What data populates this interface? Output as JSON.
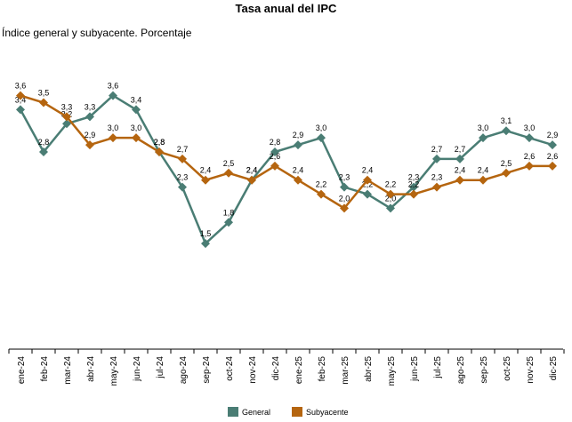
{
  "chart_data": {
    "type": "line",
    "title": "Tasa anual del IPC",
    "subtitle": "Índice general y subyacente. Porcentaje",
    "categories": [
      "ene-24",
      "feb-24",
      "mar-24",
      "abr-24",
      "may-24",
      "jun-24",
      "jul-24",
      "ago-24",
      "sep-24",
      "oct-24",
      "nov-24",
      "dic-24",
      "ene-25",
      "feb-25",
      "mar-25",
      "abr-25",
      "may-25",
      "jun-25",
      "jul-25",
      "ago-25",
      "sep-25",
      "oct-25",
      "nov-25",
      "dic-25"
    ],
    "tick_labels": [
      "ene-24",
      "feb-24",
      "mar-24",
      "abr-24",
      "may-24",
      "jun-24",
      "jul-24",
      "ago-24",
      "sep-24",
      "oct-24",
      "nov-24",
      "dic-24",
      "ene-25",
      "feb-25",
      "mar-25",
      "abr-25",
      "may-25",
      "jun-25",
      "jul-25",
      "ago-25",
      "sep-25",
      "oct-25",
      "nov-25",
      "dic-25"
    ],
    "ylim": [
      0,
      4.2
    ],
    "grid": false,
    "legend_position": "bottom",
    "series": [
      {
        "name": "General",
        "color": "#4a7d74",
        "values": [
          3.4,
          2.8,
          3.2,
          3.3,
          3.6,
          3.4,
          2.8,
          2.3,
          1.5,
          1.8,
          2.4,
          2.8,
          2.9,
          3.0,
          2.3,
          2.2,
          2.0,
          2.3,
          2.7,
          2.7,
          3.0,
          3.1,
          3.0,
          2.9
        ],
        "labels": [
          "3,4",
          "2,8",
          "3,2",
          "3,3",
          "3,6",
          "3,4",
          "2,8",
          "2,3",
          "1,5",
          "1,8",
          "2,4",
          "2,8",
          "2,9",
          "3,0",
          "2,3",
          "2,2",
          "2,0",
          "2,3",
          "2,7",
          "2,7",
          "3,0",
          "3,1",
          "3,0",
          "2,9"
        ]
      },
      {
        "name": "Subyacente",
        "color": "#b5650f",
        "values": [
          3.6,
          3.5,
          3.3,
          2.9,
          3.0,
          3.0,
          2.8,
          2.7,
          2.4,
          2.5,
          2.4,
          2.6,
          2.4,
          2.2,
          2.0,
          2.4,
          2.2,
          2.2,
          2.3,
          2.4,
          2.4,
          2.5,
          2.6,
          2.6
        ],
        "labels": [
          "3,6",
          "3,5",
          "3,3",
          "2,9",
          "3,0",
          "3,0",
          "2,8",
          "2,7",
          "2,4",
          "2,5",
          "2,4",
          "2,6",
          "2,4",
          "2,2",
          "2,0",
          "2,4",
          "2,2",
          "2,2",
          "2,3",
          "2,4",
          "2,4",
          "2,5",
          "2,6",
          "2,6"
        ]
      }
    ]
  }
}
